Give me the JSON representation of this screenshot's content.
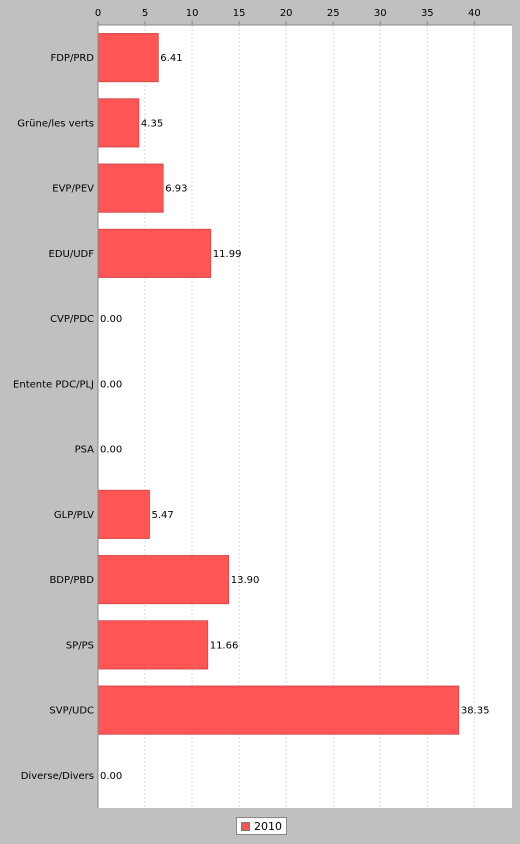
{
  "chart_data": {
    "type": "bar",
    "orientation": "horizontal",
    "categories": [
      "FDP/PRD",
      "Grüne/les verts",
      "EVP/PEV",
      "EDU/UDF",
      "CVP/PDC",
      "Entente PDC/PLJ",
      "PSA",
      "GLP/PLV",
      "BDP/PBD",
      "SP/PS",
      "SVP/UDC",
      "Diverse/Divers"
    ],
    "series": [
      {
        "name": "2010",
        "values": [
          6.41,
          4.35,
          6.93,
          11.99,
          0.0,
          0.0,
          0.0,
          5.47,
          13.9,
          11.66,
          38.35,
          0.0
        ],
        "labels": [
          "6.41",
          "4.35",
          "6.93",
          "11.99",
          "0.00",
          "0.00",
          "0.00",
          "5.47",
          "13.90",
          "11.66",
          "38.35",
          "0.00"
        ]
      }
    ],
    "xlim": [
      0,
      44
    ],
    "xticks": [
      0,
      5,
      10,
      15,
      20,
      25,
      30,
      35,
      40
    ],
    "xtick_labels": [
      "0",
      "5",
      "10",
      "15",
      "20",
      "25",
      "30",
      "35",
      "40"
    ],
    "axis_position": "top",
    "grid": true,
    "legend_position": "bottom",
    "colors": {
      "bar": "#ff5555",
      "bar_edge": "#cc4444",
      "grid": "#d8d8d8",
      "plot_bg": "#ffffff",
      "page_bg": "#c0c0c0"
    }
  },
  "legend": {
    "label": "2010"
  }
}
